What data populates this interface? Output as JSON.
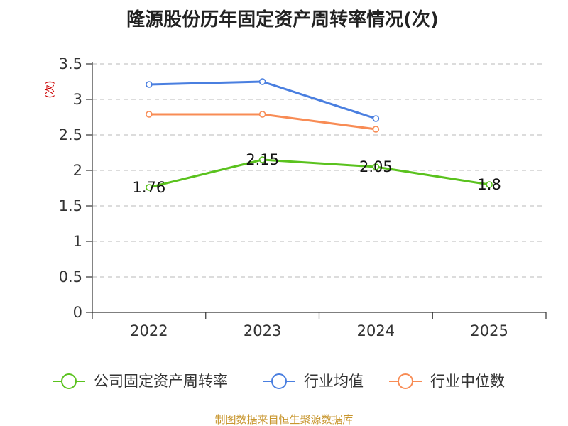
{
  "chart_data": {
    "type": "line",
    "title": "隆源股份历年固定资产周转率情况(次)",
    "ylabel": "(次)",
    "xlabel": "",
    "categories": [
      "2022",
      "2023",
      "2024",
      "2025"
    ],
    "ylim": [
      0,
      3.5
    ],
    "yticks": [
      "0",
      "0.5",
      "1",
      "1.5",
      "2",
      "2.5",
      "3",
      "3.5"
    ],
    "grid": true,
    "legend_position": "bottom",
    "series": [
      {
        "name": "公司固定资产周转率",
        "color": "#5ac21e",
        "values": [
          1.76,
          2.15,
          2.05,
          1.8
        ],
        "labels": [
          "1.76",
          "2.15",
          "2.05",
          "1.8"
        ]
      },
      {
        "name": "行业均值",
        "color": "#4a7fe0",
        "values": [
          3.21,
          3.25,
          2.73,
          null
        ]
      },
      {
        "name": "行业中位数",
        "color": "#f88c55",
        "values": [
          2.79,
          2.79,
          2.58,
          null
        ]
      }
    ]
  },
  "source": "制图数据来自恒生聚源数据库"
}
